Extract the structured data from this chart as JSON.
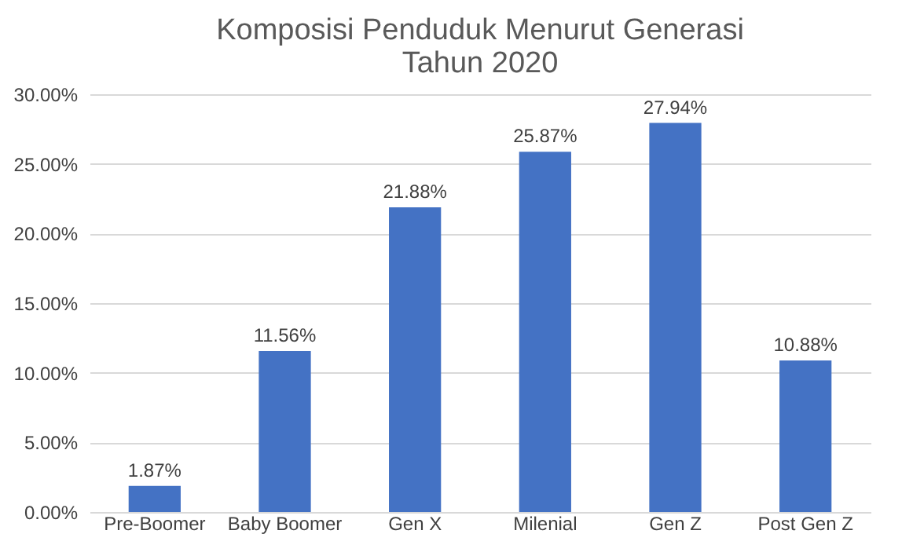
{
  "chart_data": {
    "type": "bar",
    "title": "Komposisi Penduduk Menurut Generasi\nTahun 2020",
    "categories": [
      "Pre-Boomer",
      "Baby Boomer",
      "Gen X",
      "Milenial",
      "Gen Z",
      "Post Gen Z"
    ],
    "values": [
      1.87,
      11.56,
      21.88,
      25.87,
      27.94,
      10.88
    ],
    "value_labels": [
      "1.87%",
      "11.56%",
      "21.88%",
      "25.87%",
      "27.94%",
      "10.88%"
    ],
    "color": "#4472c4",
    "ylim": [
      0,
      30
    ],
    "yticks": [
      {
        "value": 0,
        "label": "0.00%"
      },
      {
        "value": 5,
        "label": "5.00%"
      },
      {
        "value": 10,
        "label": "10.00%"
      },
      {
        "value": 15,
        "label": "15.00%"
      },
      {
        "value": 20,
        "label": "20.00%"
      },
      {
        "value": 25,
        "label": "25.00%"
      },
      {
        "value": 30,
        "label": "30.00%"
      }
    ],
    "grid": "y"
  }
}
